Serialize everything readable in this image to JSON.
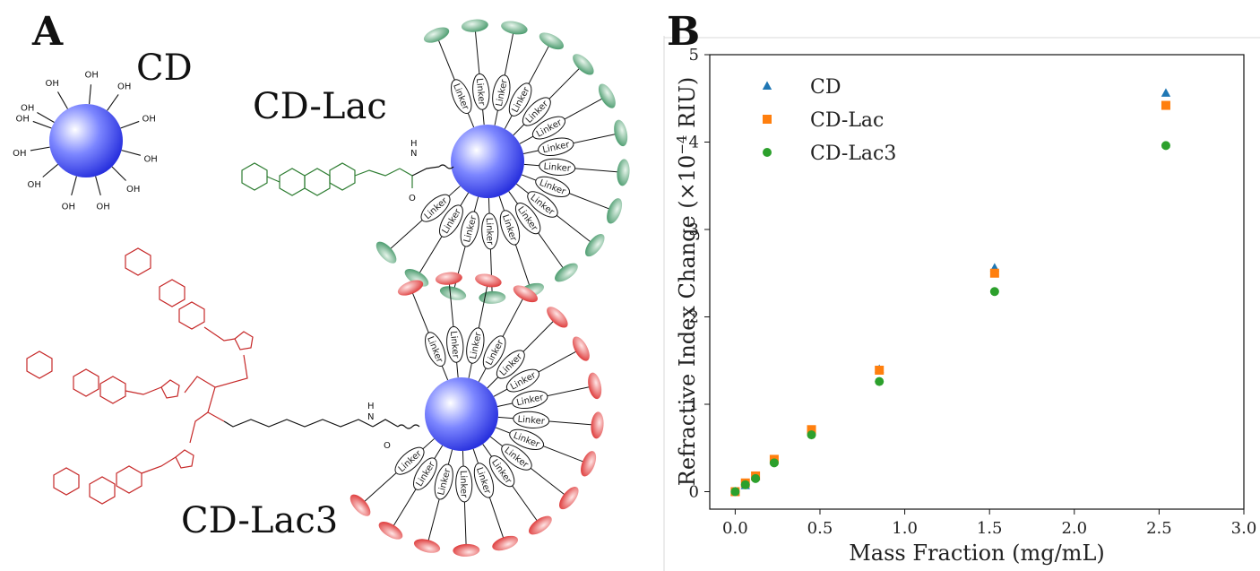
{
  "panels": {
    "a_letter": "A",
    "b_letter": "B"
  },
  "molecules": {
    "cd_label": "CD",
    "cdlac_label": "CD-Lac",
    "cdlac3_label": "CD-Lac3",
    "linker_text": "Linker",
    "cooh_text": "OH",
    "ho_text": "HO",
    "o_text": "O",
    "nh_text": "N",
    "h_text": "H",
    "triazole_n": "N",
    "colors": {
      "cd_sphere": "#1f2fe0",
      "cdlac_ellipse": "#2e8b57",
      "cdlac3_ellipse": "#e02020",
      "cdlac_chem": "#2e7d32",
      "cdlac3_chem": "#c62828"
    }
  },
  "chart_data": {
    "type": "scatter",
    "title": "",
    "xlabel": "Mass Fraction (mg/mL)",
    "ylabel_main": "Refractive Index Change (",
    "ylabel_times": "×10",
    "ylabel_exp": "−4",
    "ylabel_unit": " RIU)",
    "xlim": [
      -0.15,
      3.0
    ],
    "ylim": [
      -0.2,
      5.0
    ],
    "xticks": [
      0.0,
      0.5,
      1.0,
      1.5,
      2.0,
      2.5,
      3.0
    ],
    "xtick_labels": [
      "0.0",
      "0.5",
      "1.0",
      "1.5",
      "2.0",
      "2.5",
      "3.0"
    ],
    "yticks": [
      0,
      1,
      2,
      3,
      4,
      5
    ],
    "ytick_labels": [
      "0",
      "1",
      "2",
      "3",
      "4",
      "5"
    ],
    "legend_position": "upper-left",
    "grid": false,
    "series": [
      {
        "name": "CD",
        "marker": "triangle",
        "color": "#1f77b4",
        "x": [
          0.0,
          0.06,
          0.12,
          0.23,
          0.45,
          0.85,
          1.53,
          2.54
        ],
        "y": [
          0.0,
          0.07,
          0.17,
          0.36,
          0.7,
          1.4,
          2.56,
          4.56
        ]
      },
      {
        "name": "CD-Lac",
        "marker": "square",
        "color": "#ff7f0e",
        "x": [
          0.0,
          0.06,
          0.12,
          0.23,
          0.45,
          0.85,
          1.53,
          2.54
        ],
        "y": [
          0.0,
          0.1,
          0.18,
          0.37,
          0.71,
          1.39,
          2.5,
          4.42
        ]
      },
      {
        "name": "CD-Lac3",
        "marker": "circle",
        "color": "#2ca02c",
        "x": [
          0.0,
          0.06,
          0.12,
          0.23,
          0.45,
          0.85,
          1.53,
          2.54
        ],
        "y": [
          0.0,
          0.08,
          0.15,
          0.33,
          0.65,
          1.26,
          2.29,
          3.96
        ]
      }
    ]
  }
}
